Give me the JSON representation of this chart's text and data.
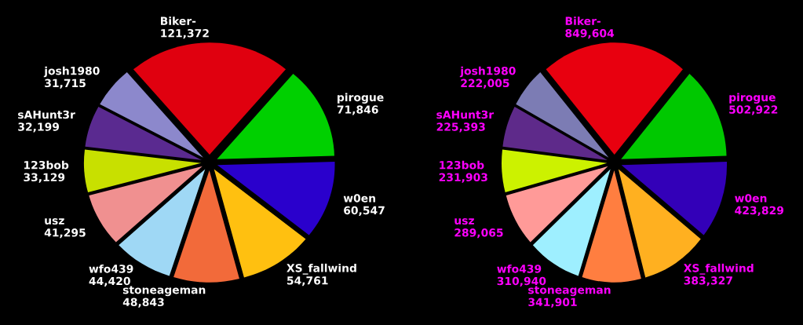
{
  "chart_data": [
    {
      "type": "pie",
      "categories": [
        "Biker-",
        "pirogue",
        "w0en",
        "XS_fallwind",
        "stoneageman",
        "wfo439",
        "usz",
        "123bob",
        "sAHunt3r",
        "josh1980"
      ],
      "values": [
        121372,
        71846,
        60547,
        54761,
        48843,
        44420,
        41295,
        33129,
        32199,
        31715
      ],
      "value_labels": [
        "121,372",
        "71,846",
        "60,547",
        "54,761",
        "48,843",
        "44,420",
        "41,295",
        "33,129",
        "32,199",
        "31,715"
      ],
      "colors": [
        "#e0000f",
        "#00d000",
        "#2a00cc",
        "#ffc010",
        "#f26a3a",
        "#9fd8f5",
        "#f09090",
        "#c8e000",
        "#5a2a90",
        "#8c88cc"
      ]
    },
    {
      "type": "pie",
      "categories": [
        "Biker-",
        "pirogue",
        "w0en",
        "XS_fallwind",
        "stoneageman",
        "wfo439",
        "usz",
        "123bob",
        "sAHunt3r",
        "josh1980"
      ],
      "values": [
        849604,
        502922,
        423829,
        383327,
        341901,
        310940,
        289065,
        231903,
        225393,
        222005
      ],
      "value_labels": [
        "849,604",
        "502,922",
        "423,829",
        "383,327",
        "341,901",
        "310,940",
        "289,065",
        "231,903",
        "225,393",
        "222,005"
      ],
      "colors": [
        "#e8000f",
        "#00c800",
        "#3300b8",
        "#ffb020",
        "#ff7e40",
        "#9eefff",
        "#ff9a98",
        "#ccf200",
        "#5e2a8a",
        "#7c7cb4"
      ]
    }
  ]
}
